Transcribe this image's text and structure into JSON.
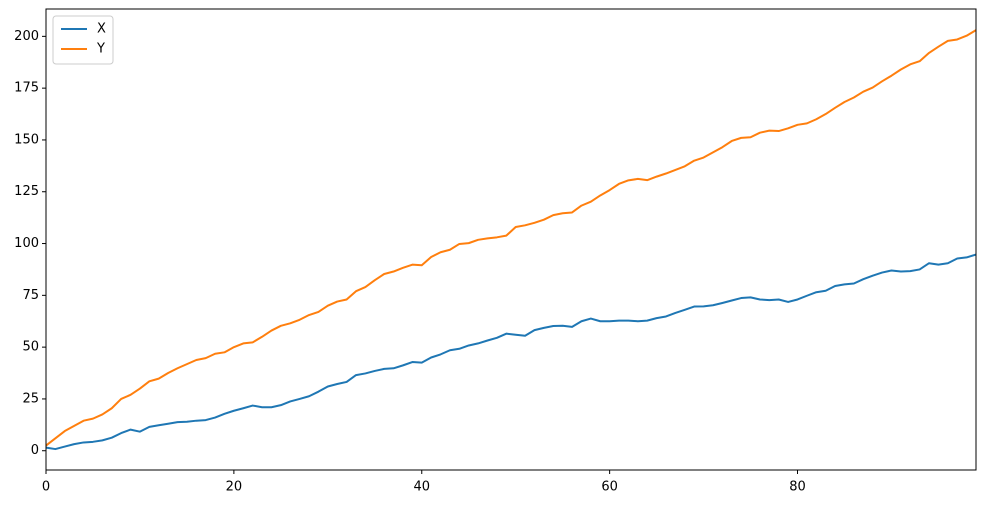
{
  "chart_data": {
    "type": "line",
    "x": [
      0,
      1,
      2,
      3,
      4,
      5,
      6,
      7,
      8,
      9,
      10,
      11,
      12,
      13,
      14,
      15,
      16,
      17,
      18,
      19,
      20,
      21,
      22,
      23,
      24,
      25,
      26,
      27,
      28,
      29,
      30,
      31,
      32,
      33,
      34,
      35,
      36,
      37,
      38,
      39,
      40,
      41,
      42,
      43,
      44,
      45,
      46,
      47,
      48,
      49,
      50,
      51,
      52,
      53,
      54,
      55,
      56,
      57,
      58,
      59,
      60,
      61,
      62,
      63,
      64,
      65,
      66,
      67,
      68,
      69,
      70,
      71,
      72,
      73,
      74,
      75,
      76,
      77,
      78,
      79,
      80,
      81,
      82,
      83,
      84,
      85,
      86,
      87,
      88,
      89,
      90,
      91,
      92,
      93,
      94,
      95,
      96,
      97,
      98,
      99
    ],
    "series": [
      {
        "name": "X",
        "color": "#1f77b4",
        "values": [
          1.5,
          0.8,
          2,
          3.2,
          4,
          4.3,
          5,
          6.3,
          8.5,
          10.2,
          9.2,
          11.5,
          12.3,
          13,
          13.8,
          14,
          14.5,
          14.8,
          16,
          17.8,
          19.3,
          20.5,
          21.8,
          21,
          21,
          22,
          23.8,
          25,
          26.3,
          28.5,
          31,
          32.2,
          33.2,
          36.5,
          37.3,
          38.5,
          39.5,
          39.8,
          41.2,
          42.8,
          42.5,
          45,
          46.5,
          48.5,
          49.2,
          50.8,
          51.8,
          53.2,
          54.5,
          56.5,
          56,
          55.5,
          58.2,
          59.3,
          60.2,
          60.3,
          59.8,
          62.5,
          63.8,
          62.5,
          62.5,
          62.8,
          62.8,
          62.5,
          62.8,
          64,
          64.8,
          66.5,
          68,
          69.6,
          69.7,
          70.2,
          71.3,
          72.5,
          73.7,
          74,
          73,
          72.7,
          73,
          71.8,
          73,
          74.8,
          76.5,
          77.2,
          79.5,
          80.3,
          80.7,
          82.8,
          84.5,
          86,
          87,
          86.5,
          86.7,
          87.5,
          90.5,
          89.8,
          90.5,
          92.8,
          93.3,
          94.7
        ]
      },
      {
        "name": "Y",
        "color": "#ff7f0e",
        "values": [
          2.5,
          6,
          9.5,
          12,
          14.5,
          15.5,
          17.5,
          20.5,
          25,
          27,
          30,
          33.5,
          34.8,
          37.5,
          39.8,
          41.8,
          43.8,
          44.7,
          46.8,
          47.5,
          50,
          51.8,
          52.3,
          55,
          58,
          60.3,
          61.5,
          63.2,
          65.5,
          67,
          70,
          72,
          73,
          77,
          79,
          82.3,
          85.3,
          86.5,
          88.3,
          89.8,
          89.5,
          93.5,
          95.8,
          97,
          99.8,
          100.2,
          101.8,
          102.5,
          103,
          103.8,
          108,
          108.8,
          110,
          111.5,
          113.7,
          114.6,
          115,
          118.3,
          120.2,
          123.2,
          125.8,
          128.8,
          130.5,
          131.2,
          130.6,
          132.3,
          133.8,
          135.5,
          137.3,
          140,
          141.5,
          144,
          146.5,
          149.5,
          151,
          151.3,
          153.5,
          154.5,
          154.3,
          155.6,
          157.3,
          158,
          160,
          162.5,
          165.5,
          168.3,
          170.5,
          173.3,
          175.3,
          178.3,
          181,
          184,
          186.5,
          188,
          192,
          195,
          197.8,
          198.5,
          200.3,
          203
        ]
      }
    ],
    "xlim": [
      0,
      99
    ],
    "xticks": [
      0,
      20,
      40,
      60,
      80
    ],
    "ylim": [
      -9.3,
      213.2
    ],
    "yticks": [
      0,
      25,
      50,
      75,
      100,
      125,
      150,
      175,
      200
    ],
    "legend": "upper left"
  }
}
